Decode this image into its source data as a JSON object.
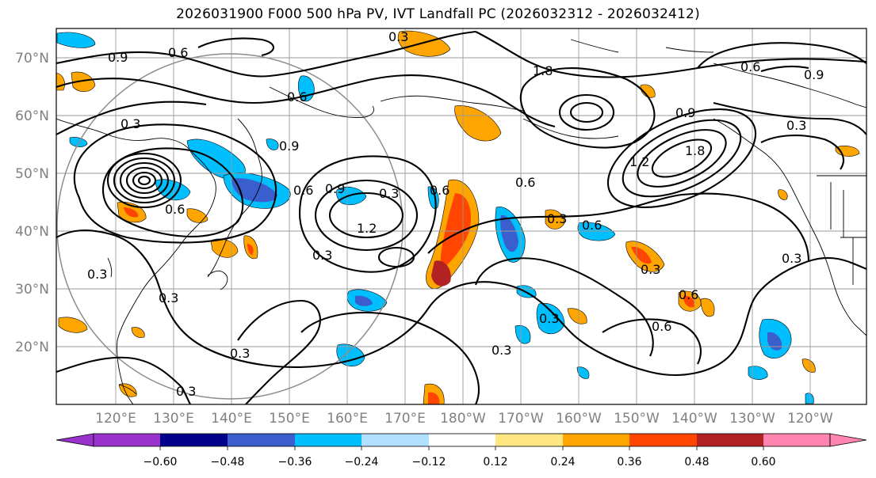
{
  "title": "2026031900 F000 500 hPa PV, IVT Landfall PC (2026032312 - 2026032412)",
  "map": {
    "lat_labels": [
      "70°N",
      "60°N",
      "50°N",
      "40°N",
      "30°N",
      "20°N"
    ],
    "lat_values": [
      70,
      60,
      50,
      40,
      30,
      20
    ],
    "lon_labels": [
      "120°E",
      "130°E",
      "140°E",
      "150°E",
      "160°E",
      "170°E",
      "180°W",
      "170°W",
      "160°W",
      "150°W",
      "140°W",
      "130°W",
      "120°W"
    ],
    "lon_values": [
      120,
      130,
      140,
      150,
      160,
      170,
      180,
      190,
      200,
      210,
      220,
      230,
      240
    ],
    "lat_range": [
      10,
      75
    ],
    "lon_range": [
      110,
      248
    ]
  },
  "contours": {
    "labels": [
      "0.9",
      "0.6",
      "1.8",
      "0.6",
      "0.9",
      "0.3",
      "0.6",
      "0.9",
      "0.6",
      "0.3",
      "0.9",
      "1.2",
      "0.3",
      "0.6",
      "0.9",
      "1.8",
      "1.2",
      "0.3",
      "0.6",
      "0.6",
      "0.3",
      "0.3",
      "0.3",
      "0.3",
      "0.3",
      "0.6",
      "0.6",
      "0.3",
      "0.3",
      "0.6",
      "0.3",
      "0.3",
      "0.3"
    ]
  },
  "colorbar": {
    "ticks": [
      "−0.60",
      "−0.48",
      "−0.36",
      "−0.24",
      "−0.12",
      "0.12",
      "0.24",
      "0.36",
      "0.48",
      "0.60"
    ],
    "tick_values": [
      -0.6,
      -0.48,
      -0.36,
      -0.24,
      -0.12,
      0.12,
      0.24,
      0.36,
      0.48,
      0.6
    ],
    "colors": {
      "below": "#9932cc",
      "bins": [
        "#9932cc",
        "#00008b",
        "#3a5fcd",
        "#00bfff",
        "#b0e0ff",
        "#ffffff",
        "#ffe680",
        "#ffa500",
        "#ff4500",
        "#b22222",
        "#ff85b0"
      ],
      "above": "#ff85b0"
    }
  }
}
